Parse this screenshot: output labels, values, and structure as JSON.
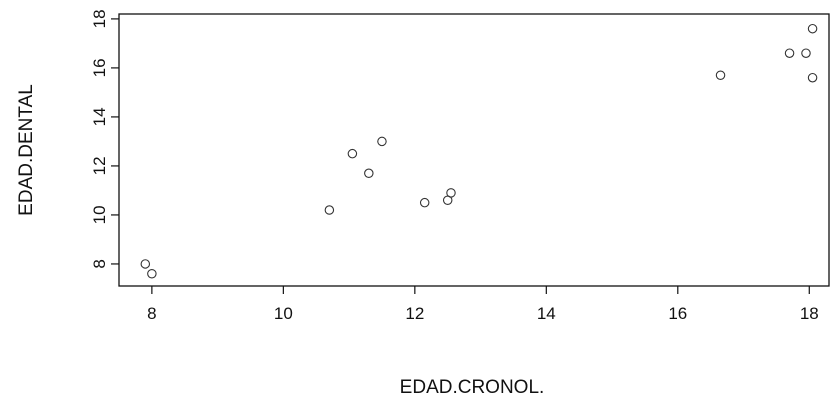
{
  "chart_data": {
    "type": "scatter",
    "xlabel": "EDAD.CRONOL.",
    "ylabel": "EDAD.DENTAL",
    "xlim": [
      7.5,
      18.3
    ],
    "ylim": [
      7.1,
      18.2
    ],
    "xticks": [
      8,
      10,
      12,
      14,
      16,
      18
    ],
    "yticks": [
      8,
      10,
      12,
      14,
      16,
      18
    ],
    "grid": false,
    "marker": "open-circle",
    "colors": {
      "points": "#333333",
      "axis": "#111111"
    },
    "points": [
      {
        "x": 7.9,
        "y": 8.0
      },
      {
        "x": 8.0,
        "y": 7.6
      },
      {
        "x": 10.7,
        "y": 10.2
      },
      {
        "x": 11.05,
        "y": 12.5
      },
      {
        "x": 11.3,
        "y": 11.7
      },
      {
        "x": 11.5,
        "y": 13.0
      },
      {
        "x": 12.15,
        "y": 10.5
      },
      {
        "x": 12.5,
        "y": 10.6
      },
      {
        "x": 12.55,
        "y": 10.9
      },
      {
        "x": 16.65,
        "y": 15.7
      },
      {
        "x": 17.7,
        "y": 16.6
      },
      {
        "x": 17.95,
        "y": 16.6
      },
      {
        "x": 18.05,
        "y": 17.6
      },
      {
        "x": 18.05,
        "y": 15.6
      }
    ]
  }
}
